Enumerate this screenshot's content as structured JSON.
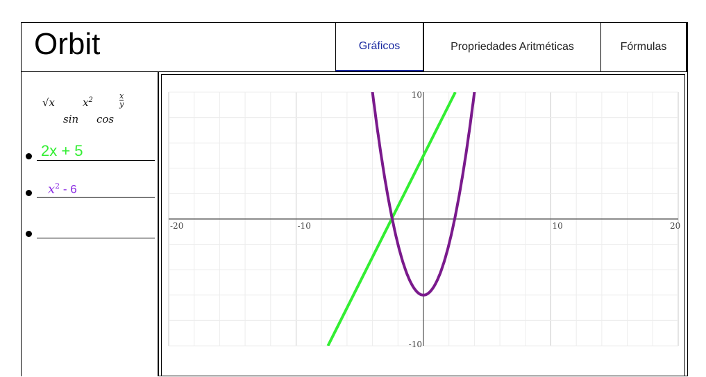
{
  "header": {
    "app_title": "Orbit",
    "tabs": [
      {
        "label": "Gráficos",
        "active": true
      },
      {
        "label": "Propriedades Aritméticas",
        "active": false
      },
      {
        "label": "Fórmulas",
        "active": false
      }
    ]
  },
  "sidebar": {
    "symbols": {
      "sqrt": "√x",
      "power_base": "x",
      "power_exp": "2",
      "frac_num": "x",
      "frac_den": "y",
      "sin": "sin",
      "cos": "cos"
    },
    "expressions": [
      {
        "text": "2x + 5",
        "color": "#33ee33"
      },
      {
        "base": "x",
        "exp": "2",
        "rest": " - 6",
        "color": "#8a2be2"
      },
      {
        "text": ""
      }
    ]
  },
  "colors": {
    "linear": "#33ee33",
    "parabola": "#7a1a8c",
    "active_tab": "#1a2aa0"
  },
  "chart_data": {
    "type": "line",
    "xlim": [
      -20,
      20
    ],
    "ylim": [
      -10,
      10
    ],
    "x_ticks": [
      "-20",
      "-10",
      "10",
      "20"
    ],
    "y_ticks": [
      "10",
      "-10"
    ],
    "grid": true,
    "series": [
      {
        "expression": "2x + 5",
        "color": "#33ee33",
        "x": [
          -7.5,
          2.5
        ],
        "y": [
          -10,
          10
        ]
      },
      {
        "expression": "x^2 - 6",
        "color": "#7a1a8c",
        "x": [
          -4,
          -3,
          -2,
          -1,
          0,
          1,
          2,
          3,
          4
        ],
        "y": [
          10,
          3,
          -2,
          -5,
          -6,
          -5,
          -2,
          3,
          10
        ]
      }
    ]
  }
}
